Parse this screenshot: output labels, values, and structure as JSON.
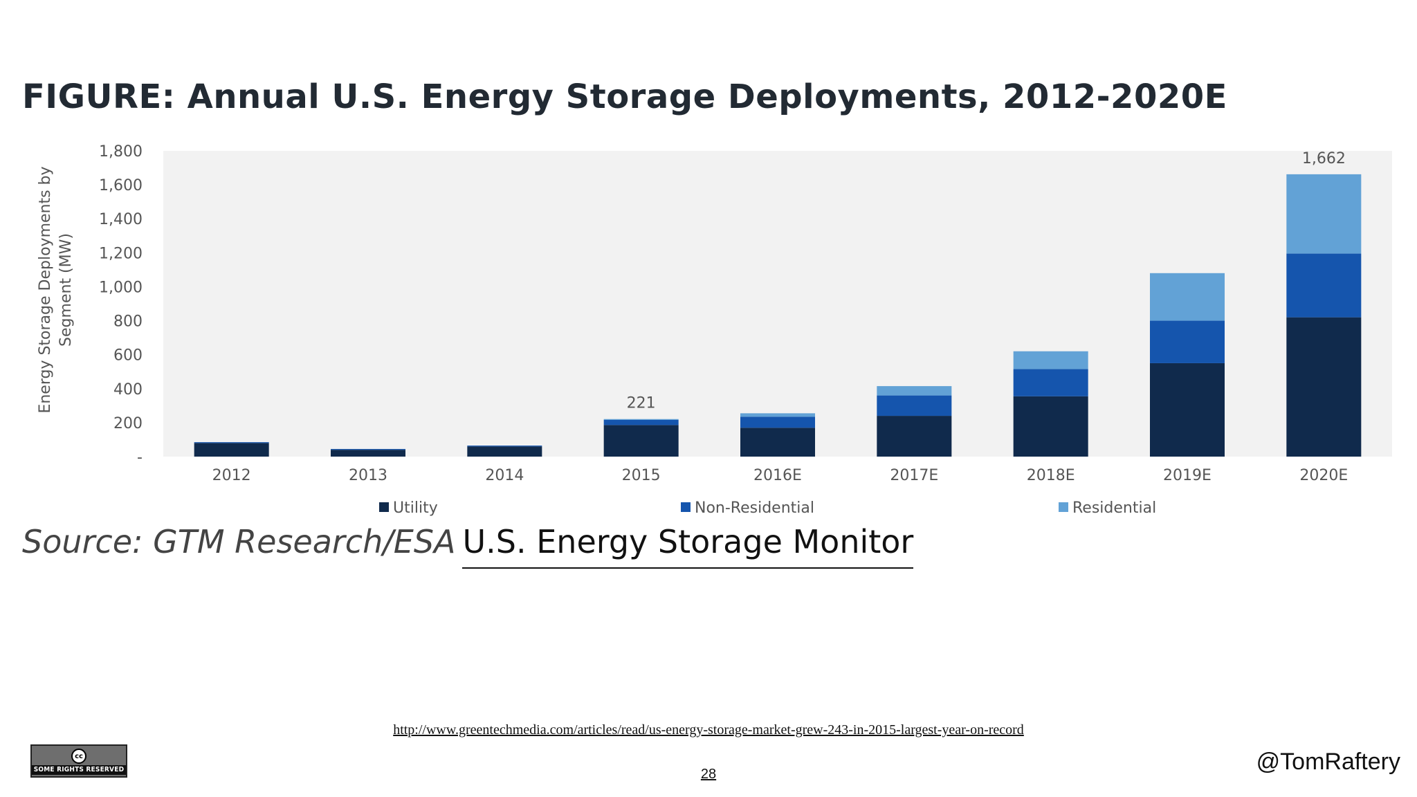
{
  "slide": {
    "title": "FIGURE: Annual U.S. Energy Storage Deployments, 2012-2020E",
    "source_prefix": "Source: GTM Research/ESA",
    "source_link": "U.S. Energy Storage Monitor",
    "url": "http://www.greentechmedia.com/articles/read/us-energy-storage-market-grew-243-in-2015-largest-year-on-record",
    "page_number": "28",
    "handle": "@TomRaftery",
    "cc_badge": {
      "symbol": "cc",
      "text": "SOME RIGHTS RESERVED",
      "icon": "creative-commons-icon"
    }
  },
  "chart_data": {
    "type": "bar",
    "stacked": true,
    "categories": [
      "2012",
      "2013",
      "2014",
      "2015",
      "2016E",
      "2017E",
      "2018E",
      "2019E",
      "2020E"
    ],
    "series": [
      {
        "name": "Utility",
        "color": "#102a4c",
        "values": [
          80,
          40,
          60,
          186,
          170,
          240,
          355,
          550,
          820
        ]
      },
      {
        "name": "Non-Residential",
        "color": "#1555ad",
        "values": [
          5,
          5,
          5,
          30,
          65,
          120,
          160,
          250,
          375
        ]
      },
      {
        "name": "Residential",
        "color": "#62a2d6",
        "values": [
          0,
          0,
          0,
          5,
          20,
          55,
          105,
          280,
          467
        ]
      }
    ],
    "data_labels": [
      {
        "category": "2015",
        "text": "221"
      },
      {
        "category": "2020E",
        "text": "1,662"
      }
    ],
    "ylabel": "Energy Storage Deployments by Segment (MW)",
    "ylim": [
      0,
      1800
    ],
    "yticks": [
      0,
      200,
      400,
      600,
      800,
      1000,
      1200,
      1400,
      1600,
      1800
    ],
    "ytick_labels": [
      "-",
      "200",
      "400",
      "600",
      "800",
      "1,000",
      "1,200",
      "1,400",
      "1,600",
      "1,800"
    ],
    "legend_position": "bottom",
    "plot_background": "#f2f2f2",
    "grid": false
  }
}
